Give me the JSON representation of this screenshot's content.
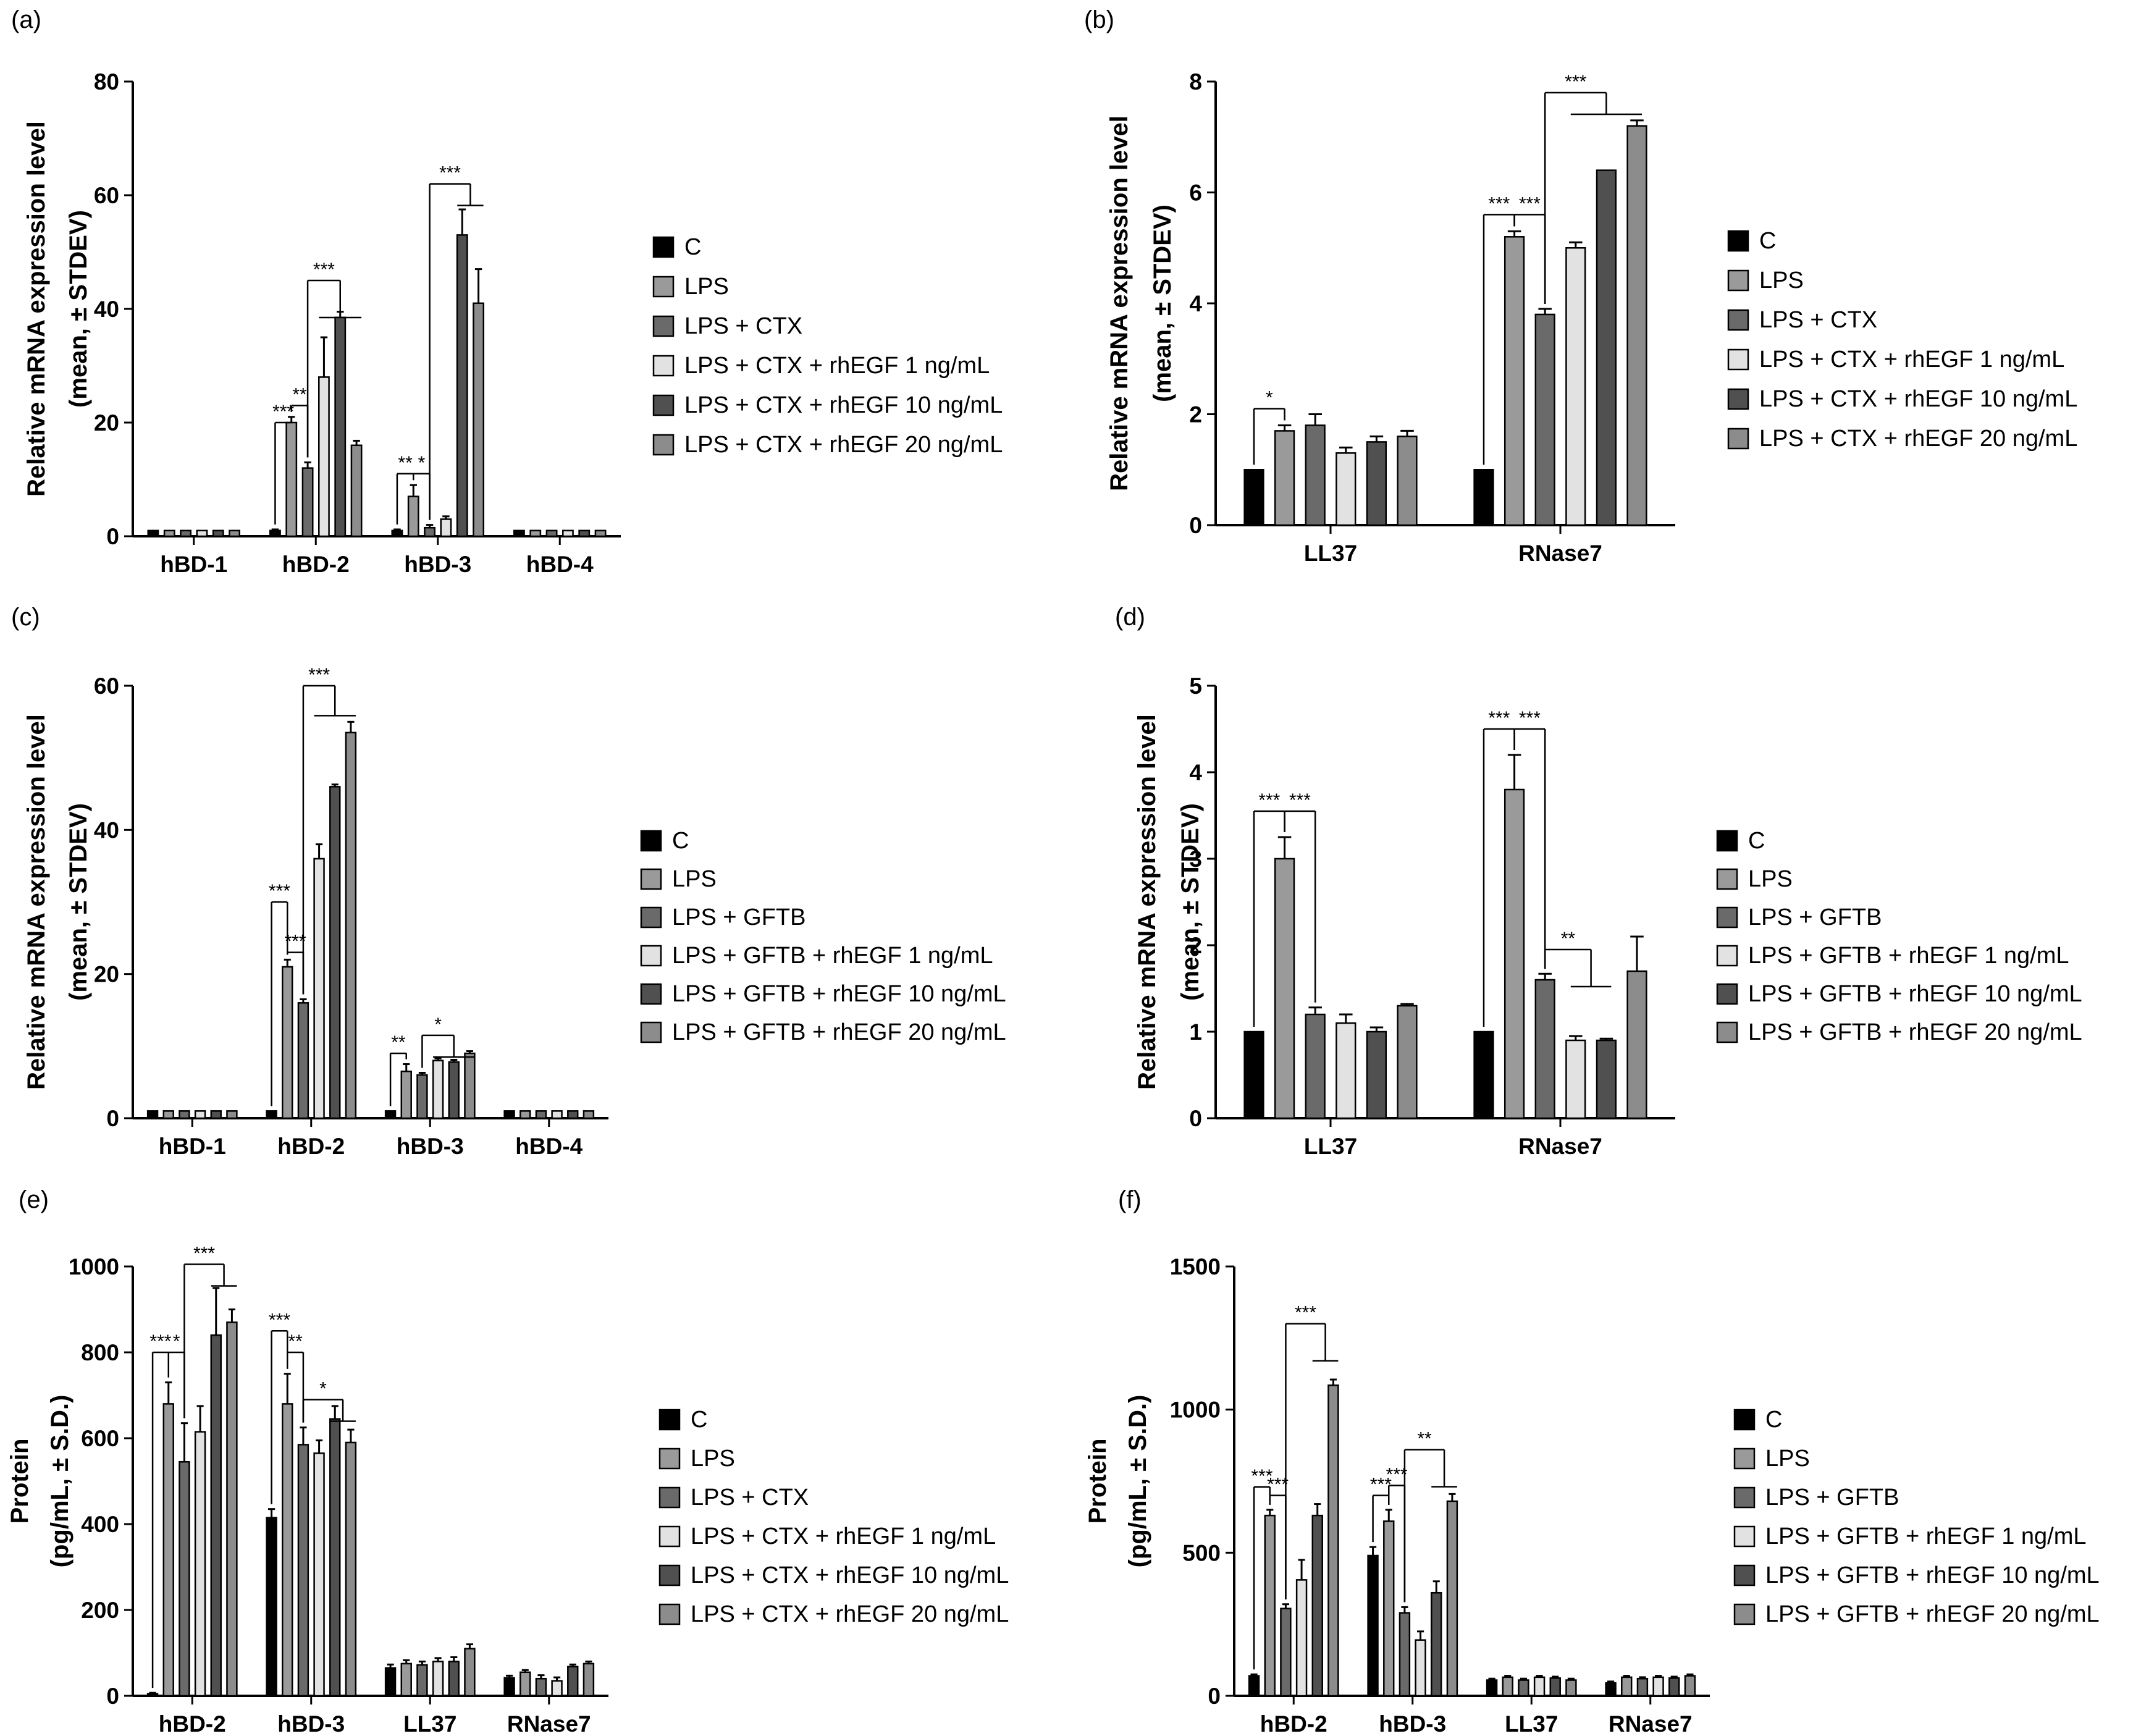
{
  "figure": {
    "panel_count": 6
  },
  "colors": {
    "C": "#000000",
    "LPS": "#9a9a9a",
    "TRT": "#6a6a6a",
    "E1": "#e2e2e2",
    "E10": "#505050",
    "E20": "#8c8c8c"
  },
  "chart_data": [
    {
      "id": "a",
      "label": "(a)",
      "type": "bar",
      "ylabel": [
        "Relative mRNA expression level",
        "(mean, ± STDEV)"
      ],
      "ylim": [
        0,
        80
      ],
      "yticks": [
        0,
        20,
        40,
        60,
        80
      ],
      "categories": [
        "hBD-1",
        "hBD-2",
        "hBD-3",
        "hBD-4"
      ],
      "series": [
        {
          "name": "C",
          "color_key": "C",
          "values": [
            1,
            1,
            1,
            1
          ],
          "errors": [
            0,
            0.2,
            0.2,
            0
          ]
        },
        {
          "name": "LPS",
          "color_key": "LPS",
          "values": [
            1,
            20,
            7,
            1
          ],
          "errors": [
            0,
            1,
            2,
            0
          ]
        },
        {
          "name": "LPS + CTX",
          "color_key": "TRT",
          "values": [
            1,
            12,
            1.5,
            1
          ],
          "errors": [
            0,
            1,
            0.5,
            0
          ]
        },
        {
          "name": "LPS + CTX + rhEGF 1 ng/mL",
          "color_key": "E1",
          "values": [
            1,
            28,
            3,
            1
          ],
          "errors": [
            0,
            7,
            0.5,
            0
          ]
        },
        {
          "name": "LPS + CTX + rhEGF 10 ng/mL",
          "color_key": "E10",
          "values": [
            1,
            38.5,
            53,
            1
          ],
          "errors": [
            0,
            1,
            4.5,
            0
          ]
        },
        {
          "name": "LPS + CTX + rhEGF 20 ng/mL",
          "color_key": "E20",
          "values": [
            1,
            16,
            41,
            1
          ],
          "errors": [
            0,
            0.8,
            6,
            0
          ]
        }
      ],
      "annotations": [
        {
          "kind": "link",
          "text": "***",
          "cat": 1,
          "from": 0,
          "to": 1,
          "level": 20
        },
        {
          "kind": "link",
          "text": "**",
          "cat": 1,
          "from": 1,
          "to": 2,
          "level": 23
        },
        {
          "kind": "group",
          "text": "***",
          "cat": 1,
          "from": 2,
          "gfrom": 3,
          "gto": 5,
          "level": 45
        },
        {
          "kind": "link",
          "text": "**",
          "cat": 2,
          "from": 0,
          "to": 1,
          "level": 11
        },
        {
          "kind": "link",
          "text": "*",
          "cat": 2,
          "from": 1,
          "to": 2,
          "level": 11
        },
        {
          "kind": "group",
          "text": "***",
          "cat": 2,
          "from": 2,
          "gfrom": 4,
          "gto": 5,
          "level": 62
        }
      ],
      "legend": [
        "C",
        "LPS",
        "LPS + CTX",
        "LPS + CTX + rhEGF 1 ng/mL",
        "LPS + CTX + rhEGF 10 ng/mL",
        "LPS + CTX + rhEGF 20 ng/mL"
      ]
    },
    {
      "id": "b",
      "label": "(b)",
      "type": "bar",
      "ylabel": [
        "Relative mRNA expression level",
        "(mean, ± STDEV)"
      ],
      "ylim": [
        0,
        8
      ],
      "yticks": [
        0,
        2,
        4,
        6,
        8
      ],
      "categories": [
        "LL37",
        "RNase7"
      ],
      "series": [
        {
          "name": "C",
          "color_key": "C",
          "values": [
            1,
            1
          ],
          "errors": [
            0,
            0
          ]
        },
        {
          "name": "LPS",
          "color_key": "LPS",
          "values": [
            1.7,
            5.2
          ],
          "errors": [
            0.1,
            0.1
          ]
        },
        {
          "name": "LPS + CTX",
          "color_key": "TRT",
          "values": [
            1.8,
            3.8
          ],
          "errors": [
            0.2,
            0.1
          ]
        },
        {
          "name": "LPS + CTX + rhEGF 1 ng/mL",
          "color_key": "E1",
          "values": [
            1.3,
            5.0
          ],
          "errors": [
            0.1,
            0.1
          ]
        },
        {
          "name": "LPS + CTX + rhEGF 10 ng/mL",
          "color_key": "E10",
          "values": [
            1.5,
            6.4
          ],
          "errors": [
            0.1,
            0
          ]
        },
        {
          "name": "LPS + CTX + rhEGF 20 ng/mL",
          "color_key": "E20",
          "values": [
            1.6,
            7.2
          ],
          "errors": [
            0.1,
            0.1
          ]
        }
      ],
      "annotations": [
        {
          "kind": "link",
          "text": "*",
          "cat": 0,
          "from": 0,
          "to": 1,
          "level": 2.1
        },
        {
          "kind": "link",
          "text": "***",
          "cat": 1,
          "from": 0,
          "to": 1,
          "level": 5.6
        },
        {
          "kind": "link",
          "text": "***",
          "cat": 1,
          "from": 1,
          "to": 2,
          "level": 5.6
        },
        {
          "kind": "group",
          "text": "***",
          "cat": 1,
          "from": 2,
          "gfrom": 3,
          "gto": 5,
          "level": 7.8
        }
      ],
      "legend": [
        "C",
        "LPS",
        "LPS + CTX",
        "LPS + CTX + rhEGF 1 ng/mL",
        "LPS + CTX + rhEGF 10 ng/mL",
        "LPS + CTX + rhEGF 20 ng/mL"
      ]
    },
    {
      "id": "c",
      "label": "(c)",
      "type": "bar",
      "ylabel": [
        "Relative mRNA expression level",
        "(mean, ± STDEV)"
      ],
      "ylim": [
        0,
        60
      ],
      "yticks": [
        0,
        20,
        40,
        60
      ],
      "categories": [
        "hBD-1",
        "hBD-2",
        "hBD-3",
        "hBD-4"
      ],
      "series": [
        {
          "name": "C",
          "color_key": "C",
          "values": [
            1,
            1,
            1,
            1
          ],
          "errors": [
            0,
            0,
            0,
            0
          ]
        },
        {
          "name": "LPS",
          "color_key": "LPS",
          "values": [
            1,
            21,
            6.5,
            1
          ],
          "errors": [
            0,
            1,
            1,
            0
          ]
        },
        {
          "name": "LPS + GFTB",
          "color_key": "TRT",
          "values": [
            1,
            16,
            6,
            1
          ],
          "errors": [
            0,
            0.5,
            0.3,
            0
          ]
        },
        {
          "name": "LPS + GFTB + rhEGF 1 ng/mL",
          "color_key": "E1",
          "values": [
            1,
            36,
            8,
            1
          ],
          "errors": [
            0,
            2,
            0.3,
            0
          ]
        },
        {
          "name": "LPS + GFTB + rhEGF 10 ng/mL",
          "color_key": "E10",
          "values": [
            1,
            46,
            7.8,
            1
          ],
          "errors": [
            0,
            0.3,
            0.3,
            0
          ]
        },
        {
          "name": "LPS + GFTB + rhEGF 20 ng/mL",
          "color_key": "E20",
          "values": [
            1,
            53.5,
            9,
            1
          ],
          "errors": [
            0,
            1.5,
            0.3,
            0
          ]
        }
      ],
      "annotations": [
        {
          "kind": "link",
          "text": "***",
          "cat": 1,
          "from": 0,
          "to": 1,
          "level": 30
        },
        {
          "kind": "link",
          "text": "***",
          "cat": 1,
          "from": 1,
          "to": 2,
          "level": 23
        },
        {
          "kind": "group",
          "text": "***",
          "cat": 1,
          "from": 2,
          "gfrom": 3,
          "gto": 5,
          "level": 60
        },
        {
          "kind": "link",
          "text": "**",
          "cat": 2,
          "from": 0,
          "to": 1,
          "level": 9
        },
        {
          "kind": "group",
          "text": "*",
          "cat": 2,
          "from": 2,
          "gfrom": 3,
          "gto": 5,
          "level": 11.5
        }
      ],
      "legend": [
        "C",
        "LPS",
        "LPS + GFTB",
        "LPS + GFTB + rhEGF 1 ng/mL",
        "LPS + GFTB + rhEGF 10 ng/mL",
        "LPS + GFTB + rhEGF 20 ng/mL"
      ]
    },
    {
      "id": "d",
      "label": "(d)",
      "type": "bar",
      "ylabel": [
        "Relative mRNA expression level",
        "(mean, ± STDEV)"
      ],
      "ylim": [
        0,
        5
      ],
      "yticks": [
        0,
        1,
        2,
        3,
        4,
        5
      ],
      "categories": [
        "LL37",
        "RNase7"
      ],
      "series": [
        {
          "name": "C",
          "color_key": "C",
          "values": [
            1,
            1
          ],
          "errors": [
            0,
            0
          ]
        },
        {
          "name": "LPS",
          "color_key": "LPS",
          "values": [
            3.0,
            3.8
          ],
          "errors": [
            0.25,
            0.4
          ]
        },
        {
          "name": "LPS + GFTB",
          "color_key": "TRT",
          "values": [
            1.2,
            1.6
          ],
          "errors": [
            0.08,
            0.07
          ]
        },
        {
          "name": "LPS + GFTB + rhEGF 1 ng/mL",
          "color_key": "E1",
          "values": [
            1.1,
            0.9
          ],
          "errors": [
            0.1,
            0.05
          ]
        },
        {
          "name": "LPS + GFTB + rhEGF 10 ng/mL",
          "color_key": "E10",
          "values": [
            1.0,
            0.9
          ],
          "errors": [
            0.05,
            0.02
          ]
        },
        {
          "name": "LPS + GFTB + rhEGF 20 ng/mL",
          "color_key": "E20",
          "values": [
            1.3,
            1.7
          ],
          "errors": [
            0.02,
            0.4
          ]
        }
      ],
      "annotations": [
        {
          "kind": "link",
          "text": "***",
          "cat": 0,
          "from": 0,
          "to": 1,
          "level": 3.55
        },
        {
          "kind": "link",
          "text": "***",
          "cat": 0,
          "from": 1,
          "to": 2,
          "level": 3.55
        },
        {
          "kind": "link",
          "text": "***",
          "cat": 1,
          "from": 0,
          "to": 1,
          "level": 4.5
        },
        {
          "kind": "link",
          "text": "***",
          "cat": 1,
          "from": 1,
          "to": 2,
          "level": 4.5
        },
        {
          "kind": "group",
          "text": "**",
          "cat": 1,
          "from": 2,
          "gfrom": 3,
          "gto": 4,
          "level": 1.95
        }
      ],
      "legend": [
        "C",
        "LPS",
        "LPS + GFTB",
        "LPS + GFTB + rhEGF 1 ng/mL",
        "LPS + GFTB + rhEGF 10 ng/mL",
        "LPS + GFTB + rhEGF 20 ng/mL"
      ]
    },
    {
      "id": "e",
      "label": "(e)",
      "type": "bar",
      "ylabel": [
        "Protein",
        "(pg/mL, ± S.D.)"
      ],
      "ylim": [
        0,
        1000
      ],
      "yticks": [
        0,
        200,
        400,
        600,
        800,
        1000
      ],
      "categories": [
        "hBD-2",
        "hBD-3",
        "LL37",
        "RNase7"
      ],
      "series": [
        {
          "name": "C",
          "color_key": "C",
          "values": [
            5,
            415,
            65,
            42
          ],
          "errors": [
            2,
            20,
            8,
            5
          ]
        },
        {
          "name": "LPS",
          "color_key": "LPS",
          "values": [
            680,
            680,
            75,
            55
          ],
          "errors": [
            50,
            70,
            8,
            5
          ]
        },
        {
          "name": "LPS + CTX",
          "color_key": "TRT",
          "values": [
            545,
            585,
            72,
            40
          ],
          "errors": [
            90,
            40,
            8,
            8
          ]
        },
        {
          "name": "LPS + CTX + rhEGF 1 ng/mL",
          "color_key": "E1",
          "values": [
            615,
            565,
            80,
            35
          ],
          "errors": [
            60,
            30,
            8,
            8
          ]
        },
        {
          "name": "LPS + CTX + rhEGF 10 ng/mL",
          "color_key": "E10",
          "values": [
            840,
            645,
            80,
            68
          ],
          "errors": [
            110,
            30,
            10,
            5
          ]
        },
        {
          "name": "LPS + CTX + rhEGF 20 ng/mL",
          "color_key": "E20",
          "values": [
            870,
            590,
            110,
            75
          ],
          "errors": [
            30,
            30,
            10,
            5
          ]
        }
      ],
      "annotations": [
        {
          "kind": "link",
          "text": "***",
          "cat": 0,
          "from": 0,
          "to": 1,
          "level": 800
        },
        {
          "kind": "link",
          "text": "*",
          "cat": 0,
          "from": 1,
          "to": 2,
          "level": 800
        },
        {
          "kind": "group",
          "text": "***",
          "cat": 0,
          "from": 2,
          "gfrom": 4,
          "gto": 5,
          "level": 1005
        },
        {
          "kind": "link",
          "text": "***",
          "cat": 1,
          "from": 0,
          "to": 1,
          "level": 850
        },
        {
          "kind": "link",
          "text": "**",
          "cat": 1,
          "from": 1,
          "to": 2,
          "level": 800
        },
        {
          "kind": "group",
          "text": "*",
          "cat": 1,
          "from": 2,
          "gfrom": 4,
          "gto": 5,
          "level": 690
        }
      ],
      "legend": [
        "C",
        "LPS",
        "LPS + CTX",
        "LPS + CTX + rhEGF 1 ng/mL",
        "LPS + CTX + rhEGF 10 ng/mL",
        "LPS + CTX + rhEGF 20 ng/mL"
      ]
    },
    {
      "id": "f",
      "label": "(f)",
      "type": "bar",
      "ylabel": [
        "Protein",
        "(pg/mL, ± S.D.)"
      ],
      "ylim": [
        0,
        1500
      ],
      "yticks": [
        0,
        500,
        1000,
        1500
      ],
      "categories": [
        "hBD-2",
        "hBD-3",
        "LL37",
        "RNase7"
      ],
      "series": [
        {
          "name": "C",
          "color_key": "C",
          "values": [
            70,
            490,
            55,
            45
          ],
          "errors": [
            5,
            30,
            5,
            5
          ]
        },
        {
          "name": "LPS",
          "color_key": "LPS",
          "values": [
            630,
            610,
            65,
            65
          ],
          "errors": [
            20,
            40,
            5,
            5
          ]
        },
        {
          "name": "LPS + GFTB",
          "color_key": "TRT",
          "values": [
            305,
            290,
            55,
            60
          ],
          "errors": [
            15,
            20,
            5,
            5
          ]
        },
        {
          "name": "LPS + GFTB + rhEGF 1 ng/mL",
          "color_key": "E1",
          "values": [
            405,
            195,
            65,
            65
          ],
          "errors": [
            70,
            30,
            5,
            5
          ]
        },
        {
          "name": "LPS + GFTB + rhEGF 10 ng/mL",
          "color_key": "E10",
          "values": [
            630,
            360,
            62,
            62
          ],
          "errors": [
            40,
            40,
            5,
            5
          ]
        },
        {
          "name": "LPS + GFTB + rhEGF 20 ng/mL",
          "color_key": "E20",
          "values": [
            1085,
            680,
            55,
            70
          ],
          "errors": [
            20,
            25,
            5,
            5
          ]
        }
      ],
      "annotations": [
        {
          "kind": "link",
          "text": "***",
          "cat": 0,
          "from": 0,
          "to": 1,
          "level": 730
        },
        {
          "kind": "link",
          "text": "***",
          "cat": 0,
          "from": 1,
          "to": 2,
          "level": 700
        },
        {
          "kind": "group",
          "text": "***",
          "cat": 0,
          "from": 2,
          "gfrom": 4,
          "gto": 5,
          "level": 1300
        },
        {
          "kind": "link",
          "text": "***",
          "cat": 1,
          "from": 0,
          "to": 1,
          "level": 700
        },
        {
          "kind": "link",
          "text": "***",
          "cat": 1,
          "from": 1,
          "to": 2,
          "level": 735
        },
        {
          "kind": "group",
          "text": "**",
          "cat": 1,
          "from": 2,
          "gfrom": 4,
          "gto": 5,
          "level": 860
        }
      ],
      "legend": [
        "C",
        "LPS",
        "LPS + GFTB",
        "LPS + GFTB + rhEGF 1 ng/mL",
        "LPS + GFTB + rhEGF 10 ng/mL",
        "LPS + GFTB + rhEGF 20 ng/mL"
      ]
    }
  ]
}
